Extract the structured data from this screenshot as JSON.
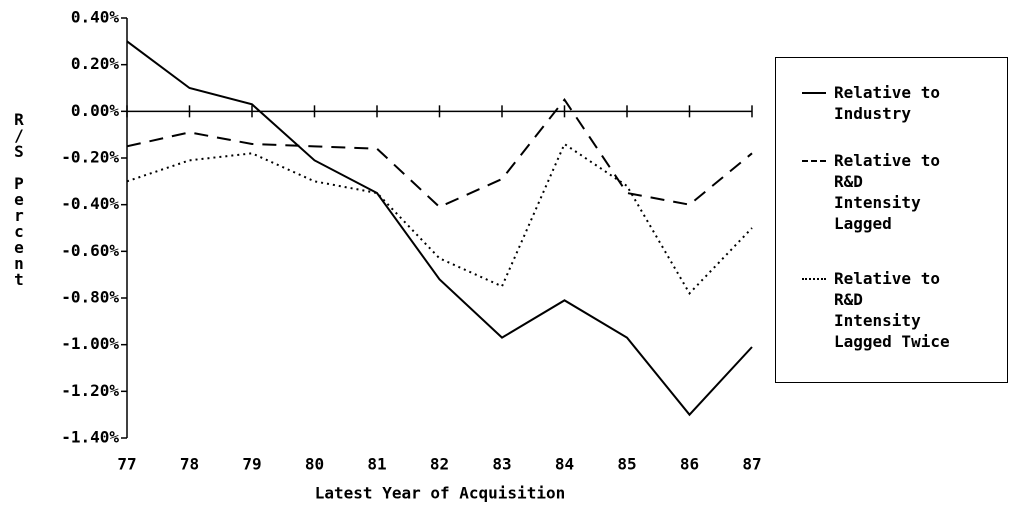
{
  "chart_data": {
    "type": "line",
    "xlabel": "Latest Year of Acquisition",
    "ylabel": "R/S Percent",
    "categories": [
      "77",
      "78",
      "79",
      "80",
      "81",
      "82",
      "83",
      "84",
      "85",
      "86",
      "87"
    ],
    "series": [
      {
        "name": "Relative to Industry",
        "color": "#000000",
        "style": "solid",
        "values": [
          0.3,
          0.1,
          0.03,
          -0.21,
          -0.35,
          -0.72,
          -0.97,
          -0.81,
          -0.97,
          -1.3,
          -1.01
        ]
      },
      {
        "name": "Relative to R&D Intensity Lagged",
        "color": "#000000",
        "style": "dashed",
        "values": [
          -0.15,
          -0.09,
          -0.14,
          -0.15,
          -0.16,
          -0.41,
          -0.29,
          0.05,
          -0.35,
          -0.4,
          -0.18
        ]
      },
      {
        "name": "Relative to R&D Intensity Lagged Twice",
        "color": "#000000",
        "style": "dotted",
        "values": [
          -0.3,
          -0.21,
          -0.18,
          -0.3,
          -0.35,
          -0.63,
          -0.75,
          -0.14,
          -0.32,
          -0.78,
          -0.5
        ]
      }
    ],
    "ylim": [
      -1.4,
      0.4
    ],
    "yticks": [
      {
        "value": 0.4,
        "label": "0.40%"
      },
      {
        "value": 0.2,
        "label": "0.20%"
      },
      {
        "value": 0,
        "label": "0.00%"
      },
      {
        "value": -0.2,
        "label": "-0.20%"
      },
      {
        "value": -0.4,
        "label": "-0.40%"
      },
      {
        "value": -0.6,
        "label": "-0.60%"
      },
      {
        "value": -0.8,
        "label": "-0.80%"
      },
      {
        "value": -1.0,
        "label": "-1.00%"
      },
      {
        "value": -1.2,
        "label": "-1.20%"
      },
      {
        "value": -1.4,
        "label": "-1.40%"
      }
    ],
    "legend": "right"
  }
}
